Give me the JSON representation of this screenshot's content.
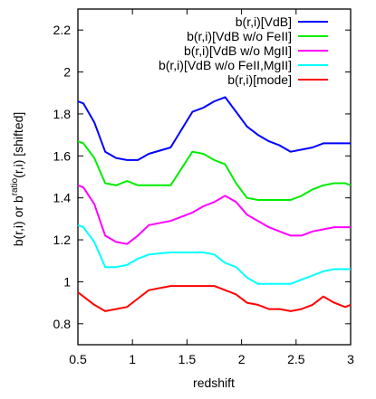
{
  "chart_data": {
    "type": "line",
    "xlabel": "redshift",
    "ylabel_parts": {
      "base": "b(r,i) or b",
      "sup": "ratio",
      "rest": "(r,i) [shifted]"
    },
    "xlim": [
      0.5,
      3.0
    ],
    "ylim": [
      0.7,
      2.3
    ],
    "x_ticks": [
      0.5,
      1,
      1.5,
      2,
      2.5,
      3
    ],
    "y_ticks": [
      0.8,
      1,
      1.2,
      1.4,
      1.6,
      1.8,
      2,
      2.2
    ],
    "grid": false,
    "legend_position": "top-right",
    "x": [
      0.5,
      0.55,
      0.65,
      0.75,
      0.85,
      0.95,
      1.05,
      1.15,
      1.35,
      1.55,
      1.65,
      1.75,
      1.85,
      1.95,
      2.05,
      2.15,
      2.25,
      2.35,
      2.45,
      2.55,
      2.65,
      2.75,
      2.85,
      2.95,
      3.0
    ],
    "series": [
      {
        "name": "b(r,i)[VdB]",
        "color": "#0000ff",
        "values": [
          1.86,
          1.85,
          1.76,
          1.62,
          1.59,
          1.58,
          1.58,
          1.61,
          1.64,
          1.81,
          1.83,
          1.86,
          1.88,
          1.81,
          1.74,
          1.7,
          1.67,
          1.65,
          1.62,
          1.63,
          1.64,
          1.66,
          1.66,
          1.66,
          1.66
        ]
      },
      {
        "name": "b(r,i)[VdB w/o FeII]",
        "color": "#00ee00",
        "values": [
          1.67,
          1.66,
          1.59,
          1.47,
          1.46,
          1.48,
          1.46,
          1.46,
          1.46,
          1.62,
          1.61,
          1.58,
          1.56,
          1.47,
          1.4,
          1.39,
          1.39,
          1.39,
          1.39,
          1.41,
          1.44,
          1.46,
          1.47,
          1.47,
          1.46
        ]
      },
      {
        "name": "b(r,i)[VdB w/o MgII]",
        "color": "#ff00ff",
        "values": [
          1.46,
          1.45,
          1.37,
          1.22,
          1.19,
          1.18,
          1.22,
          1.27,
          1.29,
          1.33,
          1.36,
          1.38,
          1.41,
          1.38,
          1.32,
          1.29,
          1.26,
          1.24,
          1.22,
          1.22,
          1.24,
          1.25,
          1.26,
          1.26,
          1.26
        ]
      },
      {
        "name": "b(r,i)[VdB w/o FeII,MgII]",
        "color": "#00ffff",
        "values": [
          1.27,
          1.26,
          1.19,
          1.07,
          1.07,
          1.08,
          1.11,
          1.13,
          1.14,
          1.14,
          1.14,
          1.13,
          1.09,
          1.07,
          1.02,
          0.99,
          0.99,
          0.99,
          0.99,
          1.01,
          1.03,
          1.05,
          1.06,
          1.06,
          1.06
        ]
      },
      {
        "name": "b(r,i)[mode]",
        "color": "#ff0000",
        "values": [
          0.95,
          0.93,
          0.89,
          0.86,
          0.87,
          0.88,
          0.92,
          0.96,
          0.98,
          0.98,
          0.98,
          0.98,
          0.96,
          0.94,
          0.9,
          0.89,
          0.87,
          0.87,
          0.86,
          0.87,
          0.89,
          0.93,
          0.9,
          0.88,
          0.89
        ]
      }
    ]
  }
}
